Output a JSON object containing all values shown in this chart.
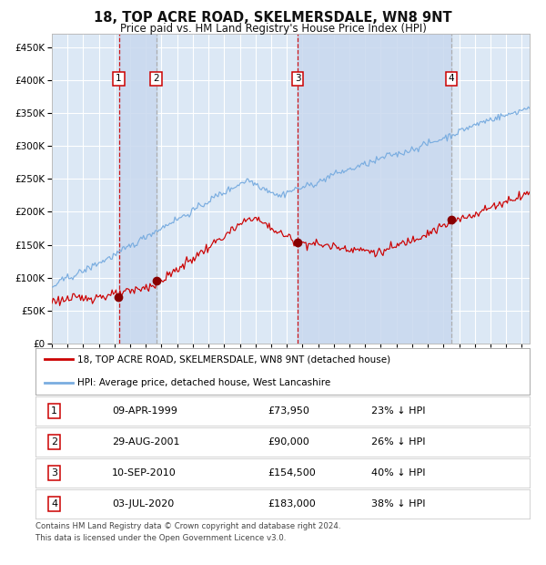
{
  "title": "18, TOP ACRE ROAD, SKELMERSDALE, WN8 9NT",
  "subtitle": "Price paid vs. HM Land Registry's House Price Index (HPI)",
  "xlim_start": 1995.0,
  "xlim_end": 2025.5,
  "ylim_min": 0,
  "ylim_max": 470000,
  "yticks": [
    0,
    50000,
    100000,
    150000,
    200000,
    250000,
    300000,
    350000,
    400000,
    450000
  ],
  "background_color": "#ffffff",
  "plot_bg_color": "#dce8f5",
  "grid_color": "#ffffff",
  "sale_events": [
    {
      "label": "1",
      "date_num": 1999.27,
      "price": 73950,
      "date_str": "09-APR-1999",
      "price_str": "£73,950",
      "hpi_str": "23% ↓ HPI"
    },
    {
      "label": "2",
      "date_num": 2001.66,
      "price": 90000,
      "date_str": "29-AUG-2001",
      "price_str": "£90,000",
      "hpi_str": "26% ↓ HPI"
    },
    {
      "label": "3",
      "date_num": 2010.69,
      "price": 154500,
      "date_str": "10-SEP-2010",
      "price_str": "£154,500",
      "hpi_str": "40% ↓ HPI"
    },
    {
      "label": "4",
      "date_num": 2020.5,
      "price": 183000,
      "date_str": "03-JUL-2020",
      "price_str": "£183,000",
      "hpi_str": "38% ↓ HPI"
    }
  ],
  "legend_line1": "18, TOP ACRE ROAD, SKELMERSDALE, WN8 9NT (detached house)",
  "legend_line2": "HPI: Average price, detached house, West Lancashire",
  "footer_line1": "Contains HM Land Registry data © Crown copyright and database right 2024.",
  "footer_line2": "This data is licensed under the Open Government Licence v3.0.",
  "red_line_color": "#cc0000",
  "blue_line_color": "#7aade0",
  "sale_marker_color": "#880000",
  "vline_red_color": "#cc0000",
  "vline_dashed_color": "#aaaaaa",
  "shade_color": "#c8d8ee"
}
